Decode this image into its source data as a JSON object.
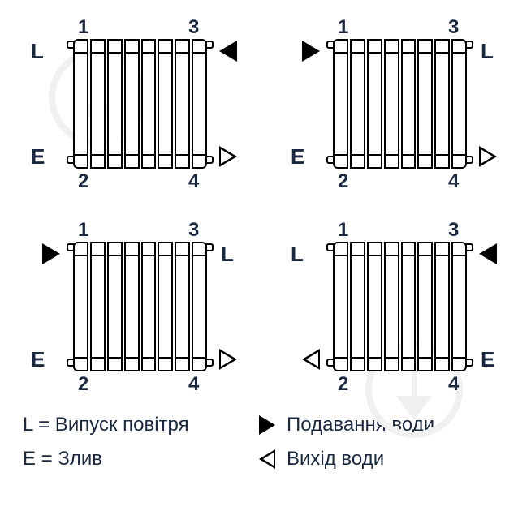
{
  "corner_numbers": {
    "tl": "1",
    "tr": "3",
    "bl": "2",
    "br": "4"
  },
  "letters": {
    "L": "L",
    "E": "E"
  },
  "configs": [
    {
      "top_left": {
        "type": "letter",
        "value": "L"
      },
      "top_right": {
        "type": "arrow",
        "style": "filled",
        "dir": "left"
      },
      "bot_left": {
        "type": "letter",
        "value": "E"
      },
      "bot_right": {
        "type": "arrow",
        "style": "hollow",
        "dir": "right"
      }
    },
    {
      "top_left": {
        "type": "arrow",
        "style": "filled",
        "dir": "right"
      },
      "top_right": {
        "type": "letter",
        "value": "L"
      },
      "bot_left": {
        "type": "letter",
        "value": "E"
      },
      "bot_right": {
        "type": "arrow",
        "style": "hollow",
        "dir": "right"
      }
    },
    {
      "top_left": {
        "type": "arrow",
        "style": "filled",
        "dir": "right"
      },
      "top_right": {
        "type": "letter",
        "value": "L"
      },
      "bot_left": {
        "type": "letter",
        "value": "E"
      },
      "bot_right": {
        "type": "arrow",
        "style": "hollow",
        "dir": "right"
      }
    },
    {
      "top_left": {
        "type": "letter",
        "value": "L"
      },
      "top_right": {
        "type": "arrow",
        "style": "filled",
        "dir": "left"
      },
      "bot_left": {
        "type": "arrow",
        "style": "hollow",
        "dir": "left"
      },
      "bot_right": {
        "type": "letter",
        "value": "E"
      }
    }
  ],
  "legend": {
    "L_label": "L = Випуск повітря",
    "E_label": "E = Злив",
    "supply": "Подавання води",
    "outlet": "Вихід води"
  },
  "colors": {
    "text": "#1a2940",
    "stroke": "#000000",
    "background": "#ffffff",
    "watermark": "#f0f0f0"
  },
  "radiator": {
    "columns": 8
  }
}
